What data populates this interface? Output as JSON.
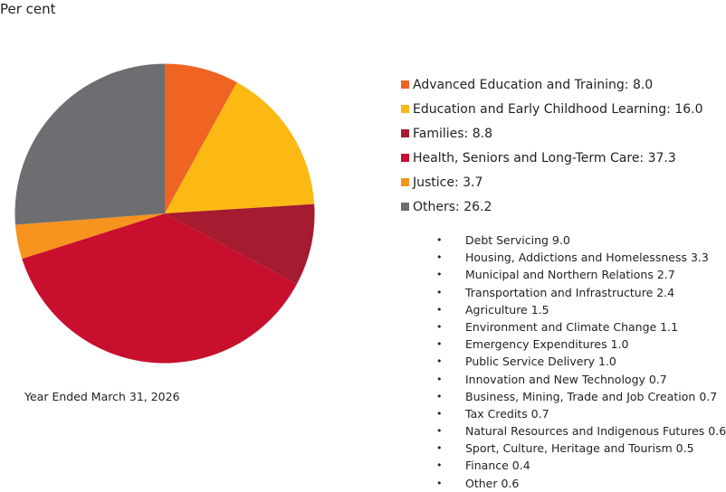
{
  "unit_label": "Per cent",
  "footnote": "Year Ended March 31, 2026",
  "chart_data": {
    "type": "pie",
    "slices": [
      {
        "label": "Advanced Education and Training",
        "value": 8.0,
        "color": "#EF6323",
        "display": "Advanced Education and Training: 8.0"
      },
      {
        "label": "Education and Early Childhood Learning",
        "value": 16.0,
        "color": "#FDB913",
        "display": "Education and Early Childhood Learning: 16.0"
      },
      {
        "label": "Families",
        "value": 8.8,
        "color": "#A51B30",
        "display": "Families: 8.8"
      },
      {
        "label": "Health, Seniors and Long-Term Care",
        "value": 37.3,
        "color": "#C8102E",
        "display": "Health, Seniors and Long-Term Care: 37.3"
      },
      {
        "label": "Justice",
        "value": 3.7,
        "color": "#F7941D",
        "display": "Justice: 3.7"
      },
      {
        "label": "Others",
        "value": 26.2,
        "color": "#6D6E71",
        "display": "Others: 26.2"
      }
    ],
    "others_breakdown": [
      "Debt Servicing 9.0",
      "Housing, Addictions and Homelessness 3.3",
      "Municipal and Northern Relations 2.7",
      "Transportation and Infrastructure 2.4",
      "Agriculture 1.5",
      "Environment and Climate Change 1.1",
      "Emergency Expenditures 1.0",
      "Public Service Delivery 1.0",
      "Innovation and New Technology 0.7",
      "Business, Mining, Trade and Job Creation 0.7",
      "Tax Credits 0.7",
      "Natural Resources and Indigenous Futures 0.6",
      "Sport, Culture, Heritage and Tourism 0.5",
      "Finance 0.4",
      "Other 0.6"
    ],
    "bullet_glyph": "•"
  }
}
